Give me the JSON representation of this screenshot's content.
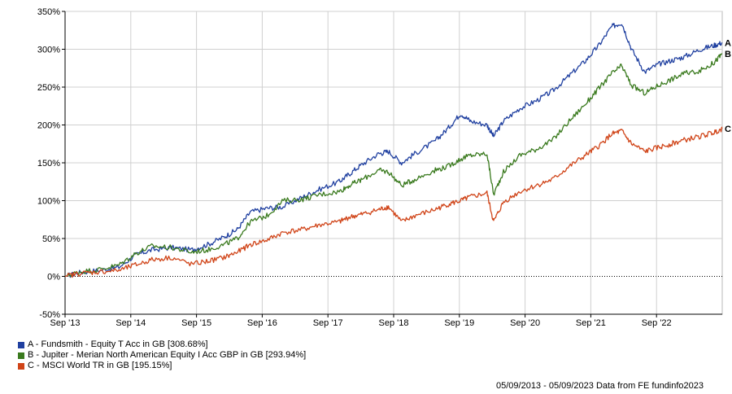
{
  "chart_data": {
    "type": "line",
    "title": "",
    "xlabel": "",
    "ylabel": "",
    "x_ticks": [
      "Sep '13",
      "Sep '14",
      "Sep '15",
      "Sep '16",
      "Sep '17",
      "Sep '18",
      "Sep '19",
      "Sep '20",
      "Sep '21",
      "Sep '22"
    ],
    "y_ticks": [
      -50,
      0,
      50,
      100,
      150,
      200,
      250,
      300,
      350
    ],
    "y_tick_labels": [
      "-50%",
      "0%",
      "50%",
      "100%",
      "150%",
      "200%",
      "250%",
      "300%",
      "350%"
    ],
    "ylim": [
      -50,
      350
    ],
    "x_range": [
      "2013-09-05",
      "2023-09-05"
    ],
    "grid": true,
    "legend_position": "bottom-left",
    "series": [
      {
        "name": "A - Fundsmith - Equity T Acc in GB [308.68%]",
        "end_label": "A",
        "color": "#2040a0",
        "points": [
          [
            2013.68,
            0
          ],
          [
            2013.9,
            5
          ],
          [
            2014.2,
            8
          ],
          [
            2014.5,
            12
          ],
          [
            2014.75,
            28
          ],
          [
            2015.0,
            35
          ],
          [
            2015.3,
            38
          ],
          [
            2015.6,
            35
          ],
          [
            2015.85,
            42
          ],
          [
            2016.1,
            52
          ],
          [
            2016.3,
            62
          ],
          [
            2016.5,
            85
          ],
          [
            2016.75,
            90
          ],
          [
            2017.0,
            92
          ],
          [
            2017.3,
            105
          ],
          [
            2017.55,
            115
          ],
          [
            2017.85,
            125
          ],
          [
            2018.0,
            135
          ],
          [
            2018.2,
            148
          ],
          [
            2018.45,
            162
          ],
          [
            2018.6,
            165
          ],
          [
            2018.8,
            150
          ],
          [
            2019.0,
            162
          ],
          [
            2019.3,
            178
          ],
          [
            2019.5,
            195
          ],
          [
            2019.7,
            215
          ],
          [
            2019.85,
            205
          ],
          [
            2020.1,
            200
          ],
          [
            2020.2,
            185
          ],
          [
            2020.35,
            205
          ],
          [
            2020.6,
            222
          ],
          [
            2020.85,
            232
          ],
          [
            2021.1,
            245
          ],
          [
            2021.35,
            265
          ],
          [
            2021.6,
            285
          ],
          [
            2021.8,
            305
          ],
          [
            2022.0,
            330
          ],
          [
            2022.15,
            335
          ],
          [
            2022.3,
            300
          ],
          [
            2022.5,
            270
          ],
          [
            2022.7,
            280
          ],
          [
            2022.9,
            285
          ],
          [
            2023.1,
            290
          ],
          [
            2023.35,
            300
          ],
          [
            2023.55,
            305
          ],
          [
            2023.68,
            308.68
          ]
        ]
      },
      {
        "name": "B - Jupiter - Merian North American Equity I Acc GBP in GB [293.94%]",
        "end_label": "B",
        "color": "#3a7a1e",
        "points": [
          [
            2013.68,
            0
          ],
          [
            2013.9,
            6
          ],
          [
            2014.2,
            9
          ],
          [
            2014.5,
            15
          ],
          [
            2014.75,
            30
          ],
          [
            2015.0,
            40
          ],
          [
            2015.3,
            38
          ],
          [
            2015.6,
            32
          ],
          [
            2015.85,
            35
          ],
          [
            2016.1,
            42
          ],
          [
            2016.3,
            50
          ],
          [
            2016.5,
            72
          ],
          [
            2016.75,
            80
          ],
          [
            2017.0,
            100
          ],
          [
            2017.3,
            102
          ],
          [
            2017.55,
            108
          ],
          [
            2017.85,
            112
          ],
          [
            2018.0,
            120
          ],
          [
            2018.2,
            128
          ],
          [
            2018.45,
            140
          ],
          [
            2018.6,
            138
          ],
          [
            2018.8,
            120
          ],
          [
            2019.0,
            128
          ],
          [
            2019.3,
            140
          ],
          [
            2019.5,
            145
          ],
          [
            2019.7,
            155
          ],
          [
            2019.85,
            160
          ],
          [
            2020.1,
            162
          ],
          [
            2020.2,
            108
          ],
          [
            2020.35,
            138
          ],
          [
            2020.6,
            160
          ],
          [
            2020.85,
            168
          ],
          [
            2021.1,
            180
          ],
          [
            2021.35,
            205
          ],
          [
            2021.6,
            228
          ],
          [
            2021.8,
            248
          ],
          [
            2022.0,
            268
          ],
          [
            2022.15,
            278
          ],
          [
            2022.3,
            252
          ],
          [
            2022.5,
            242
          ],
          [
            2022.7,
            252
          ],
          [
            2022.9,
            260
          ],
          [
            2023.1,
            268
          ],
          [
            2023.35,
            272
          ],
          [
            2023.55,
            282
          ],
          [
            2023.68,
            293.94
          ]
        ]
      },
      {
        "name": "C - MSCI World TR in GB [195.15%]",
        "end_label": "C",
        "color": "#d04418",
        "points": [
          [
            2013.68,
            0
          ],
          [
            2013.9,
            4
          ],
          [
            2014.2,
            6
          ],
          [
            2014.5,
            8
          ],
          [
            2014.75,
            15
          ],
          [
            2015.0,
            22
          ],
          [
            2015.3,
            25
          ],
          [
            2015.6,
            16
          ],
          [
            2015.85,
            20
          ],
          [
            2016.1,
            25
          ],
          [
            2016.3,
            32
          ],
          [
            2016.5,
            42
          ],
          [
            2016.75,
            48
          ],
          [
            2017.0,
            58
          ],
          [
            2017.3,
            62
          ],
          [
            2017.55,
            68
          ],
          [
            2017.85,
            72
          ],
          [
            2018.0,
            78
          ],
          [
            2018.2,
            82
          ],
          [
            2018.45,
            88
          ],
          [
            2018.6,
            92
          ],
          [
            2018.8,
            72
          ],
          [
            2019.0,
            80
          ],
          [
            2019.3,
            88
          ],
          [
            2019.5,
            95
          ],
          [
            2019.7,
            100
          ],
          [
            2019.85,
            105
          ],
          [
            2020.1,
            110
          ],
          [
            2020.2,
            72
          ],
          [
            2020.35,
            98
          ],
          [
            2020.6,
            112
          ],
          [
            2020.85,
            120
          ],
          [
            2021.1,
            128
          ],
          [
            2021.35,
            145
          ],
          [
            2021.6,
            160
          ],
          [
            2021.8,
            172
          ],
          [
            2022.0,
            188
          ],
          [
            2022.15,
            192
          ],
          [
            2022.3,
            175
          ],
          [
            2022.5,
            165
          ],
          [
            2022.7,
            170
          ],
          [
            2022.9,
            175
          ],
          [
            2023.1,
            180
          ],
          [
            2023.35,
            185
          ],
          [
            2023.55,
            190
          ],
          [
            2023.68,
            195.15
          ]
        ]
      }
    ]
  },
  "legend": [
    {
      "label": "A - Fundsmith - Equity T Acc in GB [308.68%]",
      "color": "#2040a0"
    },
    {
      "label": "B - Jupiter - Merian North American Equity I Acc GBP in GB [293.94%]",
      "color": "#3a7a1e"
    },
    {
      "label": "C - MSCI World TR in GB [195.15%]",
      "color": "#d04418"
    }
  ],
  "footer": "05/09/2013 - 05/09/2023 Data from FE fundinfo2023"
}
